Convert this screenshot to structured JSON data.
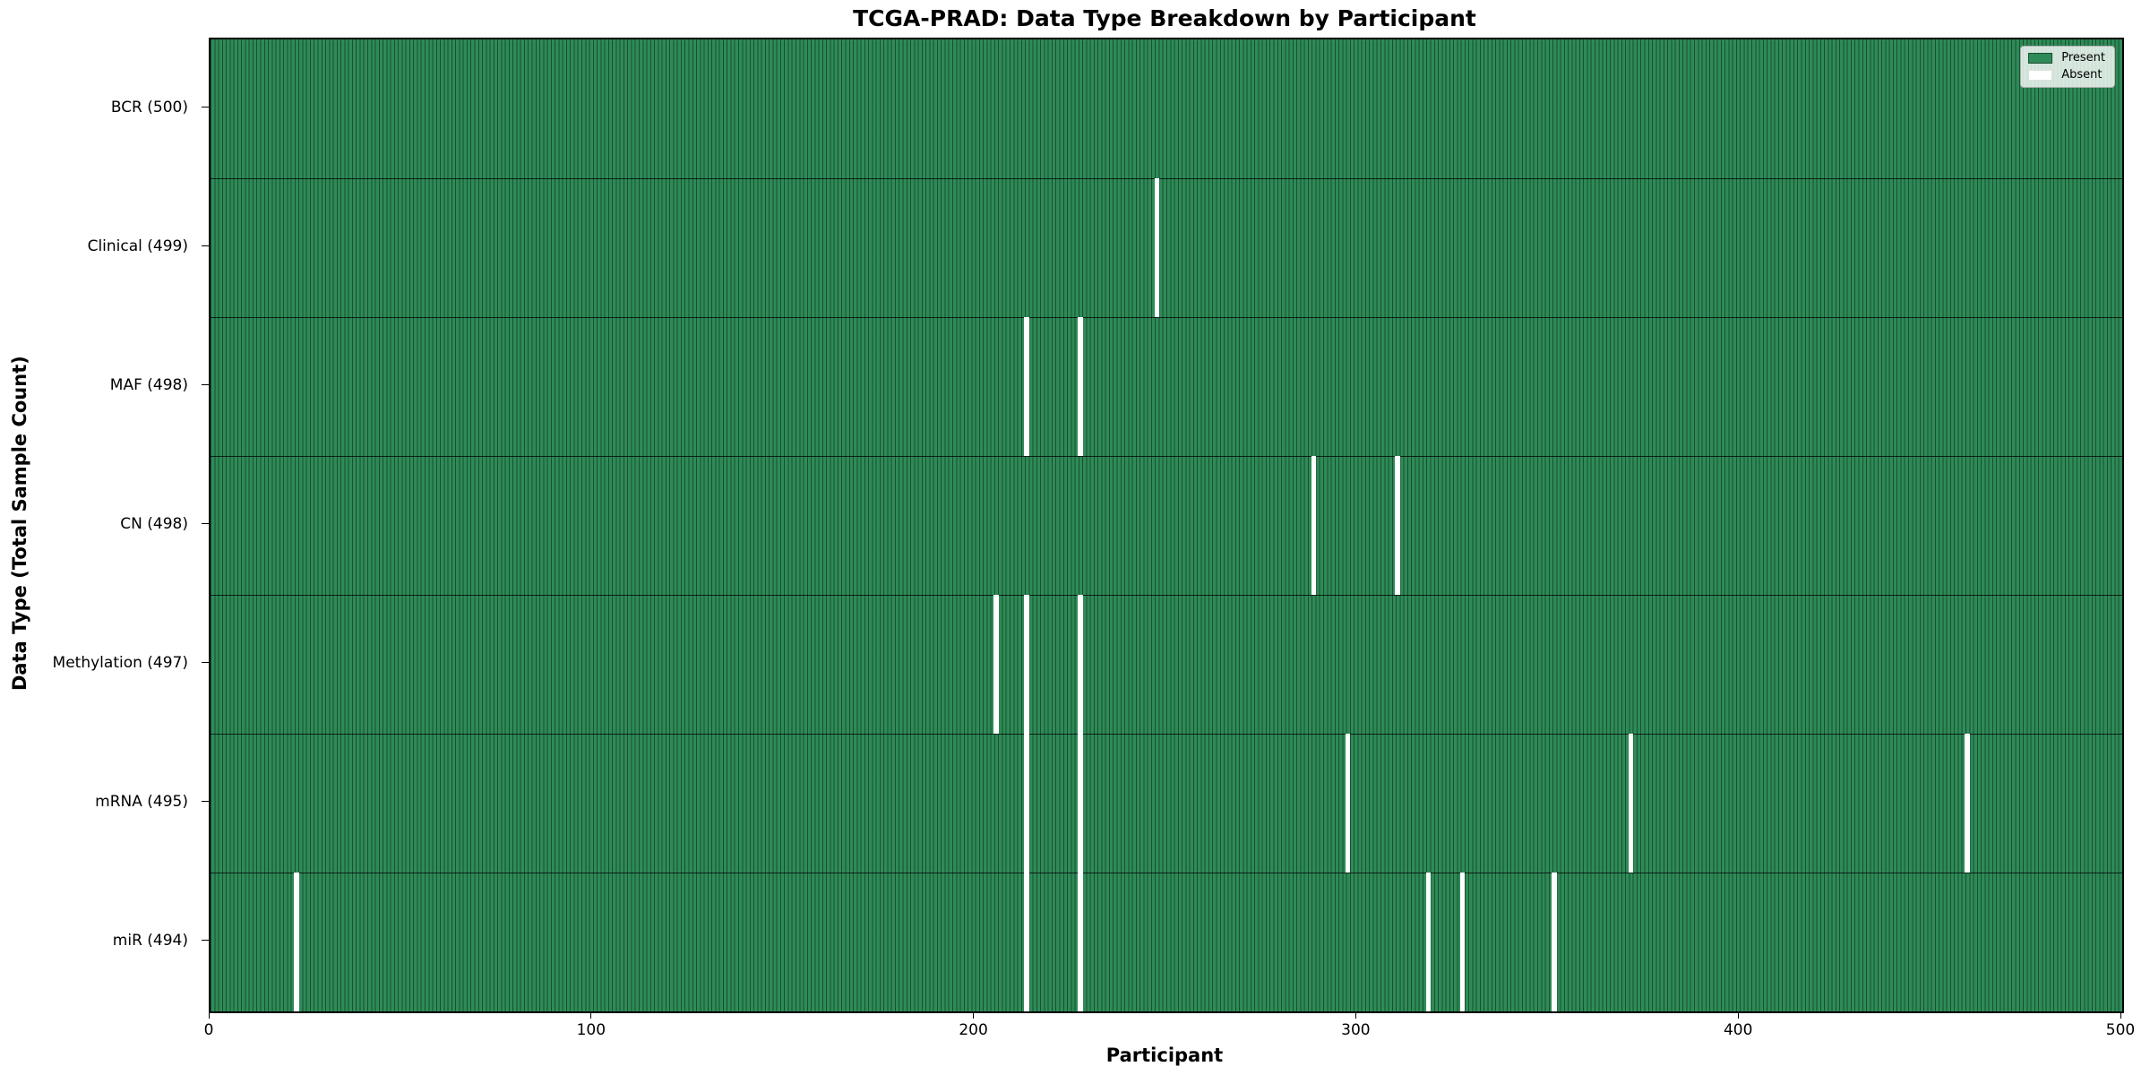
{
  "title": "TCGA-PRAD: Data Type Breakdown by Participant",
  "axes": {
    "x_label": "Participant",
    "y_label": "Data Type (Total Sample Count)"
  },
  "legend": {
    "items": [
      {
        "label": "Present",
        "color": "#2e8b57"
      },
      {
        "label": "Absent",
        "color": "#ffffff"
      }
    ]
  },
  "chart_data": {
    "type": "heatmap",
    "title": "TCGA-PRAD: Data Type Breakdown by Participant",
    "xlabel": "Participant",
    "ylabel": "Data Type (Total Sample Count)",
    "x_range": [
      0,
      500
    ],
    "n_participants": 500,
    "x_ticks": [
      0,
      100,
      200,
      300,
      400,
      500
    ],
    "legend_position": "upper right",
    "grid": false,
    "rows": [
      {
        "label": "BCR (500)",
        "total": 500,
        "absent_participants": []
      },
      {
        "label": "Clinical (499)",
        "total": 499,
        "absent_participants": [
          247
        ]
      },
      {
        "label": "MAF (498)",
        "total": 498,
        "absent_participants": [
          213,
          227
        ]
      },
      {
        "label": "CN (498)",
        "total": 498,
        "absent_participants": [
          288,
          310
        ]
      },
      {
        "label": "Methylation (497)",
        "total": 497,
        "absent_participants": [
          205,
          213,
          227
        ]
      },
      {
        "label": "mRNA (495)",
        "total": 495,
        "absent_participants": [
          213,
          227,
          297,
          371,
          459
        ]
      },
      {
        "label": "miR (494)",
        "total": 494,
        "absent_participants": [
          22,
          213,
          227,
          318,
          327,
          351
        ]
      }
    ],
    "colors": {
      "present": "#2e8b57",
      "absent": "#ffffff",
      "edge": "#0a1e14"
    }
  }
}
